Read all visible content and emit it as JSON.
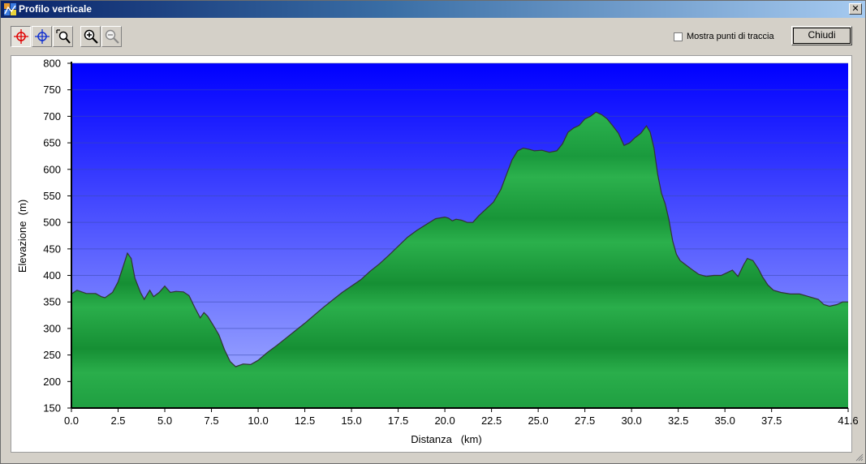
{
  "window": {
    "title": "Profilo verticale",
    "close_glyph": "✕"
  },
  "toolbar": {
    "tools": [
      {
        "name": "crosshair-red-icon",
        "pressed": true
      },
      {
        "name": "crosshair-blue-icon",
        "pressed": false
      },
      {
        "name": "zoom-window-icon",
        "pressed": false
      },
      {
        "name": "zoom-in-icon",
        "pressed": false
      },
      {
        "name": "zoom-out-icon",
        "pressed": false
      }
    ],
    "show_track_points_label": "Mostra punti di traccia",
    "show_track_points_checked": false,
    "close_label": "Chiudi"
  },
  "chart_data": {
    "type": "area",
    "title": "",
    "xlabel": "Distanza   (km)",
    "ylabel": "Elevazione  (m)",
    "xlim": [
      0,
      41.6
    ],
    "ylim": [
      150,
      800
    ],
    "x_ticks": [
      "0.0",
      "2.5",
      "5.0",
      "7.5",
      "10.0",
      "12.5",
      "15.0",
      "17.5",
      "20.0",
      "22.5",
      "25.0",
      "27.5",
      "30.0",
      "32.5",
      "35.0",
      "37.5",
      "41.6"
    ],
    "x_tick_values": [
      0,
      2.5,
      5,
      7.5,
      10,
      12.5,
      15,
      17.5,
      20,
      22.5,
      25,
      27.5,
      30,
      32.5,
      35,
      37.5,
      41.6
    ],
    "y_ticks": [
      "150",
      "200",
      "250",
      "300",
      "350",
      "400",
      "450",
      "500",
      "550",
      "600",
      "650",
      "700",
      "750",
      "800"
    ],
    "grid": true,
    "colors": {
      "sky_top": "#0000ff",
      "sky_bottom": "#a8b4ff",
      "terrain": "#25a845",
      "terrain_dark": "#15803a",
      "profile_line": "#333333"
    },
    "series": [
      {
        "x": [
          0,
          0.3,
          0.8,
          1.3,
          1.6,
          1.8,
          2.2,
          2.5,
          2.8,
          3.0,
          3.2,
          3.4,
          3.7,
          3.9,
          4.2,
          4.4,
          4.7,
          5.0,
          5.3,
          5.6,
          6.0,
          6.3,
          6.6,
          6.9,
          7.1,
          7.3,
          7.6,
          7.9,
          8.2,
          8.5,
          8.8,
          9.2,
          9.6,
          10.0,
          10.5,
          11.0,
          11.5,
          12.0,
          12.5,
          13.0,
          13.5,
          14.0,
          14.5,
          15.0,
          15.5,
          16.0,
          16.5,
          17.0,
          17.5,
          18.0,
          18.5,
          19.0,
          19.5,
          20.0,
          20.2,
          20.4,
          20.6,
          20.9,
          21.2,
          21.5,
          21.8,
          22.2,
          22.6,
          23.0,
          23.3,
          23.6,
          23.9,
          24.2,
          24.5,
          24.8,
          25.2,
          25.6,
          26.0,
          26.3,
          26.6,
          26.9,
          27.2,
          27.5,
          27.8,
          28.1,
          28.4,
          28.7,
          29.0,
          29.3,
          29.6,
          29.9,
          30.2,
          30.5,
          30.8,
          31.0,
          31.2,
          31.4,
          31.6,
          31.8,
          32.0,
          32.2,
          32.4,
          32.6,
          32.9,
          33.2,
          33.6,
          34.0,
          34.4,
          34.8,
          35.1,
          35.4,
          35.7,
          36.0,
          36.2,
          36.5,
          36.8,
          37.0,
          37.3,
          37.6,
          38.0,
          38.5,
          39.0,
          39.5,
          40.0,
          40.3,
          40.6,
          41.0,
          41.3,
          41.6
        ],
        "y": [
          365,
          372,
          366,
          366,
          360,
          358,
          368,
          388,
          420,
          442,
          432,
          395,
          368,
          355,
          372,
          360,
          368,
          380,
          368,
          370,
          369,
          362,
          340,
          320,
          330,
          323,
          306,
          288,
          260,
          238,
          228,
          233,
          232,
          240,
          255,
          268,
          282,
          296,
          310,
          325,
          340,
          354,
          368,
          380,
          392,
          408,
          422,
          438,
          455,
          472,
          485,
          496,
          507,
          510,
          508,
          503,
          506,
          504,
          500,
          500,
          512,
          525,
          538,
          562,
          590,
          618,
          635,
          640,
          638,
          635,
          636,
          632,
          635,
          648,
          670,
          678,
          683,
          695,
          700,
          708,
          703,
          695,
          682,
          668,
          645,
          650,
          660,
          668,
          682,
          670,
          640,
          590,
          555,
          535,
          505,
          465,
          440,
          428,
          420,
          412,
          402,
          398,
          400,
          400,
          405,
          410,
          398,
          420,
          432,
          428,
          412,
          398,
          382,
          372,
          368,
          365,
          365,
          360,
          355,
          345,
          342,
          345,
          350,
          350
        ]
      }
    ]
  }
}
